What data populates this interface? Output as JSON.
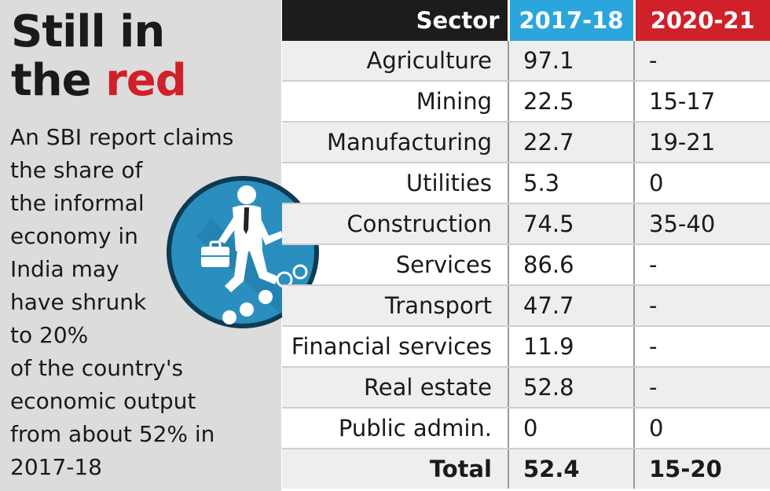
{
  "headline": {
    "line1": "Still in",
    "line2_prefix": "the ",
    "line2_accent": "red"
  },
  "blurb": [
    "An SBI report claims",
    "the share of",
    "the informal",
    "economy in",
    "India may",
    "have shrunk",
    "to 20%",
    "of the country's",
    "economic output",
    "from about 52% in",
    "2017-18"
  ],
  "icon": "businessman-climbing-steps-icon",
  "colors": {
    "accent_red": "#d0202a",
    "accent_blue": "#2aa6dc",
    "header_dark": "#1e1b1b",
    "panel_gray": "#dcdcdc"
  },
  "chart_data": {
    "type": "table",
    "columns": [
      "Sector",
      "2017-18",
      "2020-21"
    ],
    "rows": [
      [
        "Agriculture",
        "97.1",
        "-"
      ],
      [
        "Mining",
        "22.5",
        "15-17"
      ],
      [
        "Manufacturing",
        "22.7",
        "19-21"
      ],
      [
        "Utilities",
        "5.3",
        "0"
      ],
      [
        "Construction",
        "74.5",
        "35-40"
      ],
      [
        "Services",
        "86.6",
        "-"
      ],
      [
        "Transport",
        "47.7",
        "-"
      ],
      [
        "Financial services",
        "11.9",
        "-"
      ],
      [
        "Real estate",
        "52.8",
        "-"
      ],
      [
        "Public admin.",
        "0",
        "0"
      ]
    ],
    "total": [
      "Total",
      "52.4",
      "15-20"
    ]
  }
}
